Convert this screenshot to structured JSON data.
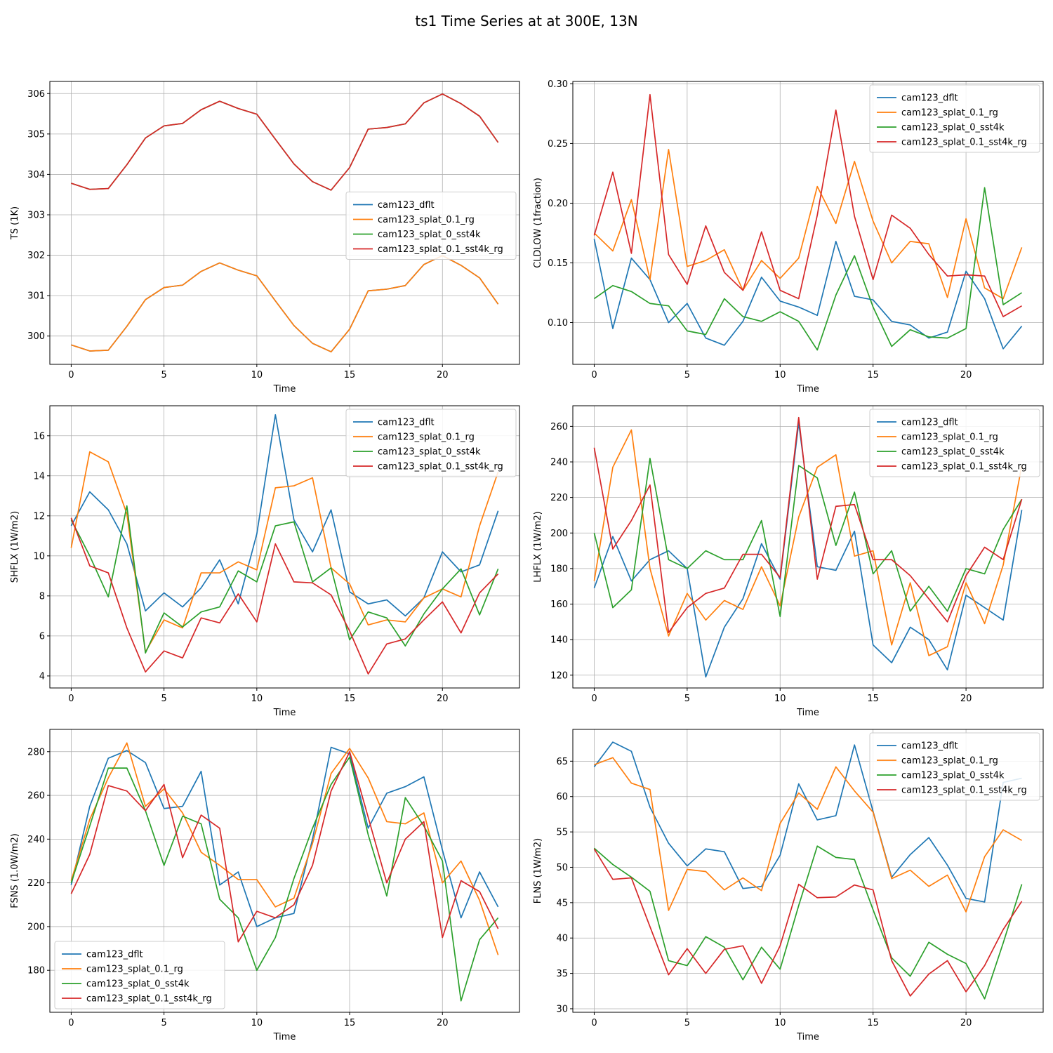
{
  "figure_title": "ts1 Time Series at at 300E, 13N",
  "colors": {
    "cam123_dflt": "#1f77b4",
    "cam123_splat_0.1_rg": "#ff7f0e",
    "cam123_splat_0_sst4k": "#2ca02c",
    "cam123_splat_0.1_sst4k_rg": "#d62728"
  },
  "chart_data": [
    {
      "type": "line",
      "ylabel": "TS (1K)",
      "xlabel": "Time",
      "xlim": [
        -1.15,
        24.15
      ],
      "ylim": [
        299.3,
        306.3
      ],
      "xticks": [
        0,
        5,
        10,
        15,
        20
      ],
      "yticks": [
        300,
        301,
        302,
        303,
        304,
        305,
        306
      ],
      "ytick_labels": [
        "300",
        "301",
        "302",
        "303",
        "304",
        "305",
        "306"
      ],
      "legend_loc": "center-right",
      "grid": true,
      "x": [
        0,
        1,
        2,
        3,
        4,
        5,
        6,
        7,
        8,
        9,
        10,
        11,
        12,
        13,
        14,
        15,
        16,
        17,
        18,
        19,
        20,
        21,
        22,
        23
      ],
      "series": [
        {
          "name": "cam123_dflt",
          "values": [
            299.78,
            299.63,
            299.65,
            300.24,
            300.9,
            301.2,
            301.26,
            301.6,
            301.81,
            301.63,
            301.49,
            300.87,
            300.26,
            299.82,
            299.61,
            300.17,
            301.12,
            301.16,
            301.25,
            301.77,
            301.99,
            301.75,
            301.44,
            300.79
          ]
        },
        {
          "name": "cam123_splat_0.1_rg",
          "values": [
            299.78,
            299.63,
            299.65,
            300.24,
            300.9,
            301.2,
            301.26,
            301.6,
            301.81,
            301.63,
            301.49,
            300.87,
            300.26,
            299.82,
            299.61,
            300.17,
            301.12,
            301.16,
            301.25,
            301.77,
            301.99,
            301.75,
            301.44,
            300.79
          ]
        },
        {
          "name": "cam123_splat_0_sst4k",
          "values": [
            303.78,
            303.63,
            303.65,
            304.24,
            304.9,
            305.2,
            305.26,
            305.6,
            305.81,
            305.63,
            305.49,
            304.87,
            304.26,
            303.82,
            303.61,
            304.17,
            305.12,
            305.16,
            305.25,
            305.77,
            305.99,
            305.75,
            305.44,
            304.79
          ]
        },
        {
          "name": "cam123_splat_0.1_sst4k_rg",
          "values": [
            303.78,
            303.63,
            303.65,
            304.24,
            304.9,
            305.2,
            305.26,
            305.6,
            305.81,
            305.63,
            305.49,
            304.87,
            304.26,
            303.82,
            303.61,
            304.17,
            305.12,
            305.16,
            305.25,
            305.77,
            305.99,
            305.75,
            305.44,
            304.79
          ]
        }
      ]
    },
    {
      "type": "line",
      "ylabel": "CLDLOW (1fraction)",
      "xlabel": "Time",
      "xlim": [
        -1.15,
        24.15
      ],
      "ylim": [
        0.065,
        0.302
      ],
      "xticks": [
        0,
        5,
        10,
        15,
        20
      ],
      "yticks": [
        0.1,
        0.15,
        0.2,
        0.25,
        0.3
      ],
      "ytick_labels": [
        "0.10",
        "0.15",
        "0.20",
        "0.25",
        "0.30"
      ],
      "legend_loc": "upper-right",
      "grid": true,
      "x": [
        0,
        1,
        2,
        3,
        4,
        5,
        6,
        7,
        8,
        9,
        10,
        11,
        12,
        13,
        14,
        15,
        16,
        17,
        18,
        19,
        20,
        21,
        22,
        23
      ],
      "series": [
        {
          "name": "cam123_dflt",
          "values": [
            0.17,
            0.095,
            0.154,
            0.136,
            0.1,
            0.116,
            0.087,
            0.081,
            0.101,
            0.138,
            0.118,
            0.113,
            0.106,
            0.168,
            0.122,
            0.119,
            0.101,
            0.098,
            0.087,
            0.092,
            0.143,
            0.12,
            0.078,
            0.097
          ]
        },
        {
          "name": "cam123_splat_0.1_rg",
          "values": [
            0.175,
            0.16,
            0.203,
            0.136,
            0.245,
            0.147,
            0.152,
            0.161,
            0.127,
            0.152,
            0.137,
            0.154,
            0.214,
            0.183,
            0.235,
            0.185,
            0.15,
            0.168,
            0.166,
            0.121,
            0.187,
            0.129,
            0.12,
            0.163
          ]
        },
        {
          "name": "cam123_splat_0_sst4k",
          "values": [
            0.12,
            0.131,
            0.126,
            0.116,
            0.114,
            0.093,
            0.09,
            0.12,
            0.105,
            0.101,
            0.109,
            0.101,
            0.077,
            0.123,
            0.156,
            0.113,
            0.08,
            0.094,
            0.088,
            0.087,
            0.095,
            0.213,
            0.115,
            0.125
          ]
        },
        {
          "name": "cam123_splat_0.1_sst4k_rg",
          "values": [
            0.173,
            0.226,
            0.158,
            0.291,
            0.157,
            0.132,
            0.181,
            0.142,
            0.127,
            0.176,
            0.127,
            0.12,
            0.19,
            0.278,
            0.189,
            0.136,
            0.19,
            0.179,
            0.157,
            0.139,
            0.14,
            0.139,
            0.105,
            0.114
          ]
        }
      ]
    },
    {
      "type": "line",
      "ylabel": "SHFLX (1W/m2)",
      "xlabel": "Time",
      "xlim": [
        -1.15,
        24.15
      ],
      "ylim": [
        3.4,
        17.5
      ],
      "xticks": [
        0,
        5,
        10,
        15,
        20
      ],
      "yticks": [
        4,
        6,
        8,
        10,
        12,
        14,
        16
      ],
      "ytick_labels": [
        "4",
        "6",
        "8",
        "10",
        "12",
        "14",
        "16"
      ],
      "legend_loc": "upper-right",
      "grid": true,
      "x": [
        0,
        1,
        2,
        3,
        4,
        5,
        6,
        7,
        8,
        9,
        10,
        11,
        12,
        13,
        14,
        15,
        16,
        17,
        18,
        19,
        20,
        21,
        22,
        23
      ],
      "series": [
        {
          "name": "cam123_dflt",
          "values": [
            11.5,
            13.2,
            12.3,
            10.6,
            7.25,
            8.15,
            7.45,
            8.4,
            9.8,
            7.6,
            11.1,
            17.05,
            11.8,
            10.2,
            12.3,
            8.2,
            7.6,
            7.8,
            7.0,
            7.9,
            10.2,
            9.2,
            9.55,
            12.25
          ]
        },
        {
          "name": "cam123_splat_0.1_rg",
          "values": [
            10.4,
            15.2,
            14.7,
            12.1,
            5.2,
            6.8,
            6.4,
            9.15,
            9.15,
            9.7,
            9.3,
            13.4,
            13.5,
            13.9,
            9.4,
            8.6,
            6.55,
            6.8,
            6.7,
            7.9,
            8.35,
            7.95,
            11.5,
            14.2
          ]
        },
        {
          "name": "cam123_splat_0_sst4k",
          "values": [
            11.8,
            10.0,
            7.95,
            12.5,
            5.15,
            7.15,
            6.45,
            7.2,
            7.45,
            9.25,
            8.7,
            11.5,
            11.7,
            8.7,
            9.4,
            5.8,
            7.2,
            6.9,
            5.5,
            7.1,
            8.35,
            9.35,
            7.05,
            9.35
          ]
        },
        {
          "name": "cam123_splat_0.1_sst4k_rg",
          "values": [
            11.9,
            9.5,
            9.15,
            6.4,
            4.2,
            5.25,
            4.9,
            6.9,
            6.65,
            8.1,
            6.7,
            10.6,
            8.7,
            8.65,
            8.05,
            6.25,
            4.1,
            5.6,
            5.85,
            6.8,
            7.7,
            6.15,
            8.15,
            9.1
          ]
        }
      ]
    },
    {
      "type": "line",
      "ylabel": "LHFLX (1W/m2)",
      "xlabel": "Time",
      "xlim": [
        -1.15,
        24.15
      ],
      "ylim": [
        112.8,
        271.6
      ],
      "xticks": [
        0,
        5,
        10,
        15,
        20
      ],
      "yticks": [
        120,
        140,
        160,
        180,
        200,
        220,
        240,
        260
      ],
      "ytick_labels": [
        "120",
        "140",
        "160",
        "180",
        "200",
        "220",
        "240",
        "260"
      ],
      "legend_loc": "upper-right",
      "grid": true,
      "x": [
        0,
        1,
        2,
        3,
        4,
        5,
        6,
        7,
        8,
        9,
        10,
        11,
        12,
        13,
        14,
        15,
        16,
        17,
        18,
        19,
        20,
        21,
        22,
        23
      ],
      "series": [
        {
          "name": "cam123_dflt",
          "values": [
            169,
            198,
            173,
            185,
            190,
            180,
            119,
            147,
            163,
            194,
            174,
            262,
            181,
            179,
            201,
            137,
            127,
            147,
            140,
            123,
            165,
            158,
            151,
            213
          ]
        },
        {
          "name": "cam123_splat_0.1_rg",
          "values": [
            173,
            237,
            258,
            180,
            142,
            166,
            151,
            162,
            157,
            181,
            159,
            209,
            237,
            244,
            187,
            190,
            137,
            172,
            131,
            136,
            172,
            149,
            182,
            238
          ]
        },
        {
          "name": "cam123_splat_0_sst4k",
          "values": [
            200,
            158,
            168,
            242,
            185,
            180,
            190,
            185,
            185,
            207,
            153,
            238,
            231,
            193,
            223,
            177,
            190,
            156,
            170,
            156,
            180,
            177,
            202,
            219
          ]
        },
        {
          "name": "cam123_splat_0.1_sst4k_rg",
          "values": [
            248,
            191,
            207,
            227,
            144,
            158,
            166,
            169,
            188,
            188,
            175,
            265,
            174,
            215,
            216,
            185,
            185,
            176,
            163,
            150,
            176,
            192,
            185,
            219
          ]
        }
      ]
    },
    {
      "type": "line",
      "ylabel": "FSNS (1.0W/m2)",
      "xlabel": "Time",
      "xlim": [
        -1.15,
        24.15
      ],
      "ylim": [
        160.8,
        290.2
      ],
      "xticks": [
        0,
        5,
        10,
        15,
        20
      ],
      "yticks": [
        180,
        200,
        220,
        240,
        260,
        280
      ],
      "ytick_labels": [
        "180",
        "200",
        "220",
        "240",
        "260",
        "280"
      ],
      "legend_loc": "lower-left",
      "grid": true,
      "x": [
        0,
        1,
        2,
        3,
        4,
        5,
        6,
        7,
        8,
        9,
        10,
        11,
        12,
        13,
        14,
        15,
        16,
        17,
        18,
        19,
        20,
        21,
        22,
        23
      ],
      "series": [
        {
          "name": "cam123_dflt",
          "values": [
            219,
            255,
            277,
            280.5,
            275,
            254,
            255,
            271,
            219,
            225,
            200,
            204,
            206,
            240,
            282,
            279,
            245,
            261,
            264,
            268.5,
            235,
            204,
            225,
            209
          ]
        },
        {
          "name": "cam123_splat_0.1_rg",
          "values": [
            221,
            249,
            268,
            284,
            255,
            263,
            252,
            234,
            228,
            221.5,
            221.5,
            209,
            213,
            238,
            270,
            281.5,
            268,
            248,
            247,
            252,
            220,
            230,
            212,
            187
          ]
        },
        {
          "name": "cam123_splat_0_sst4k",
          "values": [
            220,
            246,
            272.5,
            272.5,
            253,
            228,
            250.5,
            247,
            212.5,
            204,
            180,
            195,
            222,
            245,
            265,
            277.5,
            242,
            214,
            259,
            246,
            230,
            166,
            194,
            204
          ]
        },
        {
          "name": "cam123_splat_0.1_sst4k_rg",
          "values": [
            215,
            233,
            264.5,
            262,
            253,
            265,
            231.5,
            251,
            245,
            193,
            207,
            204,
            210,
            228,
            262,
            280,
            250,
            220,
            240,
            248,
            195,
            221,
            216,
            199
          ]
        }
      ]
    },
    {
      "type": "line",
      "ylabel": "FLNS (1W/m2)",
      "xlabel": "Time",
      "xlim": [
        -1.15,
        24.15
      ],
      "ylim": [
        29.5,
        69.5
      ],
      "xticks": [
        0,
        5,
        10,
        15,
        20
      ],
      "yticks": [
        30,
        35,
        40,
        45,
        50,
        55,
        60,
        65
      ],
      "ytick_labels": [
        "30",
        "35",
        "40",
        "45",
        "50",
        "55",
        "60",
        "65"
      ],
      "legend_loc": "upper-right",
      "grid": true,
      "x": [
        0,
        1,
        2,
        3,
        4,
        5,
        6,
        7,
        8,
        9,
        10,
        11,
        12,
        13,
        14,
        15,
        16,
        17,
        18,
        19,
        20,
        21,
        22,
        23
      ],
      "series": [
        {
          "name": "cam123_dflt",
          "values": [
            64.2,
            67.7,
            66.4,
            58.5,
            53.4,
            50.2,
            52.6,
            52.2,
            47.0,
            47.3,
            51.7,
            61.8,
            56.7,
            57.3,
            67.3,
            57.9,
            48.6,
            51.8,
            54.2,
            50.3,
            45.6,
            45.1,
            62.0,
            62.6
          ]
        },
        {
          "name": "cam123_splat_0.1_rg",
          "values": [
            64.5,
            65.5,
            61.9,
            61.0,
            43.9,
            49.7,
            49.4,
            46.8,
            48.5,
            46.7,
            56.2,
            60.5,
            58.2,
            64.2,
            60.8,
            57.8,
            48.4,
            49.6,
            47.3,
            48.9,
            43.7,
            51.5,
            55.3,
            53.8
          ]
        },
        {
          "name": "cam123_splat_0_sst4k",
          "values": [
            52.7,
            50.4,
            48.6,
            46.6,
            36.8,
            36.1,
            40.2,
            38.7,
            34.1,
            38.7,
            35.6,
            44.6,
            53.0,
            51.4,
            51.1,
            44.0,
            37.2,
            34.6,
            39.4,
            37.7,
            36.4,
            31.4,
            39.3,
            47.6
          ]
        },
        {
          "name": "cam123_splat_0.1_sst4k_rg",
          "values": [
            52.6,
            48.3,
            48.5,
            41.6,
            34.8,
            38.5,
            35.0,
            38.4,
            38.9,
            33.6,
            38.9,
            47.6,
            45.7,
            45.8,
            47.5,
            46.8,
            36.8,
            31.8,
            34.9,
            36.8,
            32.4,
            36.1,
            41.2,
            45.2
          ]
        }
      ]
    }
  ]
}
